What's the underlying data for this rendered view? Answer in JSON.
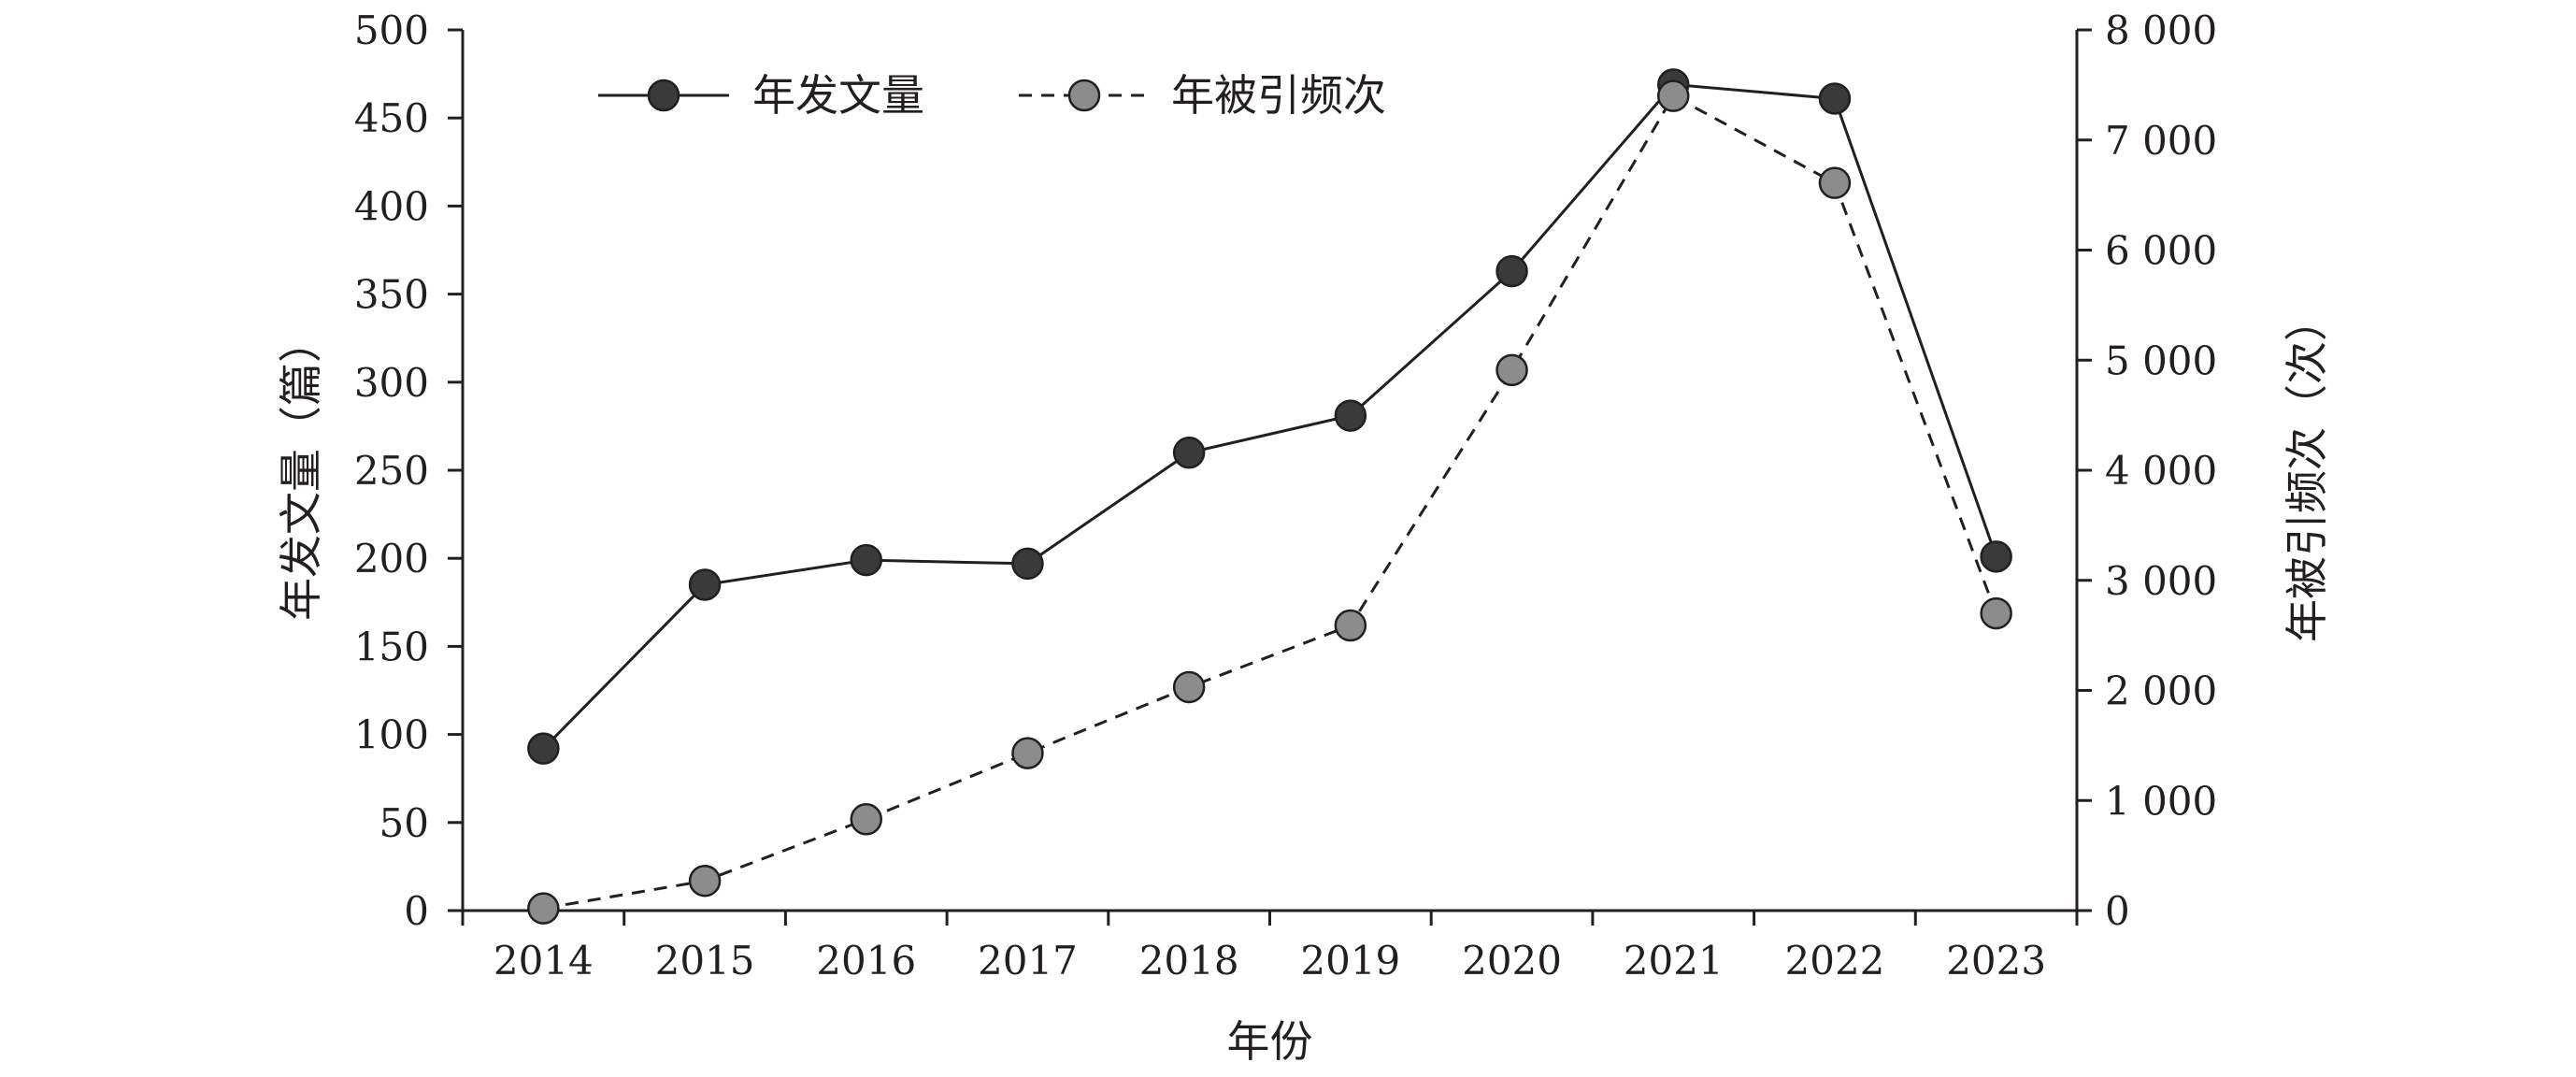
{
  "chart_data": {
    "type": "line",
    "x": [
      "2014",
      "2015",
      "2016",
      "2017",
      "2018",
      "2019",
      "2020",
      "2021",
      "2022",
      "2023"
    ],
    "xlabel": "年份",
    "y_left": {
      "label": "年发文量（篇）",
      "range": [
        0,
        500
      ],
      "ticks": [
        "0",
        "50",
        "100",
        "150",
        "200",
        "250",
        "300",
        "350",
        "400",
        "450",
        "500"
      ]
    },
    "y_right": {
      "label": "年被引频次（次）",
      "range": [
        0,
        8000
      ],
      "ticks": [
        "0",
        "1 000",
        "2 000",
        "3 000",
        "4 000",
        "5 000",
        "6 000",
        "7 000",
        "8 000"
      ]
    },
    "series": [
      {
        "name": "年发文量",
        "axis": "left",
        "style": "solid",
        "color": "#3a3a3a",
        "values": [
          92,
          185,
          199,
          197,
          260,
          281,
          363,
          469,
          461,
          201
        ]
      },
      {
        "name": "年被引频次",
        "axis": "right",
        "style": "dashed",
        "color": "#8c8c8c",
        "values": [
          20,
          270,
          830,
          1430,
          2030,
          2590,
          4910,
          7400,
          6610,
          2700
        ]
      }
    ],
    "legend": "top-left",
    "grid": false
  }
}
